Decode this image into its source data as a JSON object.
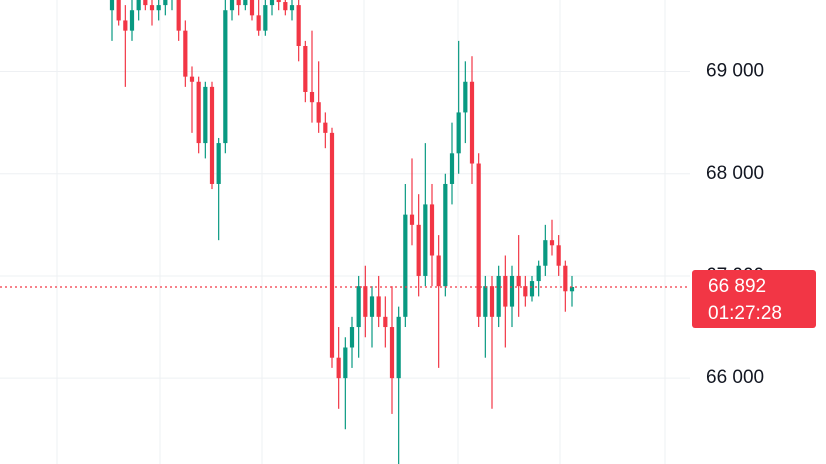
{
  "chart_data": {
    "type": "candlestick",
    "ylim": [
      65160,
      69700
    ],
    "yticks": [
      {
        "value": 66000,
        "label": "66 000"
      },
      {
        "value": 67000,
        "label": "67 000"
      },
      {
        "value": 68000,
        "label": "68 000"
      },
      {
        "value": 69000,
        "label": "69 000"
      }
    ],
    "grid": true,
    "up_color": "#089981",
    "down_color": "#f23645",
    "open": [
      69600,
      69700,
      69500,
      69400,
      69600,
      69700,
      69650,
      69600,
      69650,
      69700,
      69720,
      69400,
      68950,
      68900,
      68300,
      68850,
      67900,
      68300,
      69600,
      69700,
      69650,
      69700,
      69550,
      69400,
      69650,
      69700,
      69680,
      69600,
      69650,
      69250,
      68800,
      68700,
      68500,
      68400,
      66200,
      66000,
      66300,
      66500,
      66900,
      66600,
      66800,
      66600,
      66500,
      66000,
      66600,
      67600,
      67500,
      67000,
      67700,
      67200,
      66900,
      67900,
      68200,
      68600,
      68900,
      68100,
      66600,
      66900,
      66600,
      67000,
      66700,
      67000,
      66900,
      66800,
      66950,
      67100,
      67350,
      67300,
      67100,
      66850
    ],
    "high": [
      69750,
      69750,
      69650,
      69700,
      69750,
      69750,
      69750,
      69700,
      69750,
      69750,
      69750,
      69500,
      69050,
      68950,
      68900,
      68900,
      68350,
      69750,
      69750,
      69750,
      69750,
      69750,
      69750,
      69750,
      69750,
      69750,
      69750,
      69750,
      69750,
      69300,
      69400,
      69100,
      68600,
      68450,
      66500,
      66400,
      66600,
      67000,
      67100,
      66900,
      67000,
      66800,
      66900,
      66700,
      67900,
      68150,
      67800,
      68300,
      67900,
      67400,
      68000,
      68500,
      69300,
      69100,
      69150,
      68200,
      67000,
      67000,
      67100,
      67200,
      67100,
      67400,
      67000,
      67000,
      67150,
      67500,
      67550,
      67400,
      67150,
      67000
    ],
    "low": [
      69300,
      69450,
      68850,
      69300,
      69500,
      69600,
      69450,
      69500,
      69550,
      69600,
      69300,
      68850,
      68400,
      68200,
      68150,
      67850,
      67350,
      68200,
      69500,
      69550,
      69600,
      69500,
      69350,
      69350,
      69550,
      69600,
      69550,
      69500,
      69100,
      68700,
      68500,
      68400,
      68250,
      66100,
      65700,
      65500,
      66100,
      66200,
      66400,
      66300,
      66500,
      66300,
      65650,
      65150,
      66500,
      67300,
      66800,
      66900,
      66900,
      66100,
      66800,
      67700,
      68000,
      68300,
      67900,
      66500,
      66200,
      65700,
      66500,
      66300,
      66500,
      66600,
      66700,
      66750,
      66800,
      67000,
      67200,
      67000,
      66650,
      66700
    ],
    "close": [
      69700,
      69500,
      69400,
      69600,
      69700,
      69650,
      69600,
      69650,
      69700,
      69720,
      69400,
      68950,
      68900,
      68300,
      68850,
      67900,
      68300,
      69600,
      69700,
      69650,
      69700,
      69550,
      69400,
      69650,
      69700,
      69680,
      69600,
      69650,
      69250,
      68800,
      68700,
      68500,
      68400,
      66200,
      66000,
      66300,
      66500,
      66900,
      66600,
      66800,
      66600,
      66500,
      66000,
      66600,
      67600,
      67500,
      67000,
      67700,
      67200,
      66900,
      67900,
      68200,
      68600,
      68900,
      68100,
      66600,
      66900,
      66600,
      67000,
      66700,
      67000,
      66900,
      66800,
      66950,
      67100,
      67350,
      67300,
      67100,
      66850,
      66892
    ],
    "last_price": {
      "value": 66892,
      "label": "66 892"
    },
    "countdown": "01:27:28"
  }
}
